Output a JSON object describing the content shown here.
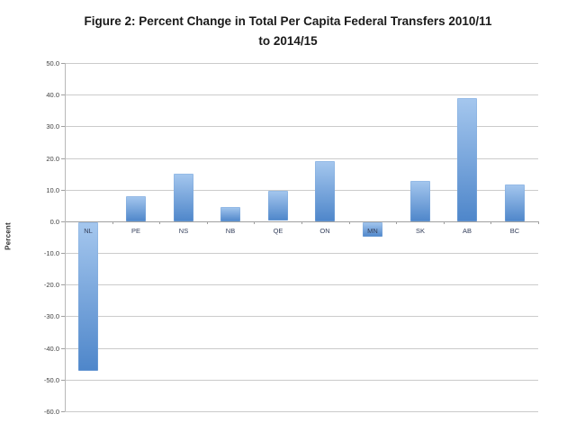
{
  "title": {
    "line1": "Figure 2: Percent Change in Total Per Capita Federal Transfers 2010/11",
    "line2": "to 2014/15"
  },
  "chart_data": {
    "type": "bar",
    "title": "Figure 2: Percent Change in Total Per Capita Federal Transfers 2010/11 to 2014/15",
    "categories": [
      "NL",
      "PE",
      "NS",
      "NB",
      "QE",
      "ON",
      "MN",
      "SK",
      "AB",
      "BC"
    ],
    "values": [
      -47.0,
      8.0,
      15.0,
      4.5,
      9.5,
      19.0,
      -4.5,
      12.7,
      39.0,
      11.7
    ],
    "xlabel": "",
    "ylabel": "Percent",
    "ylim": [
      -60,
      50
    ],
    "ytick_step": 10,
    "ytick_labels": [
      "50.0",
      "40.0",
      "30.0",
      "20.0",
      "10.0",
      "0.0",
      "-10.0",
      "-20.0",
      "-30.0",
      "-40.0",
      "-50.0",
      "-60.0"
    ],
    "grid": true,
    "legend": false,
    "colors": {
      "bar_top": "#a5c7ee",
      "bar_bottom": "#4e86ca",
      "bar_border": "#7fa9dd",
      "gridline": "#cbcbcb",
      "zero_axis": "#a0a0a0",
      "left_axis": "#b8b8b8",
      "tick": "#a0a0a0",
      "title_text": "#1a1a1a",
      "label_text": "#3f3f3f"
    }
  }
}
